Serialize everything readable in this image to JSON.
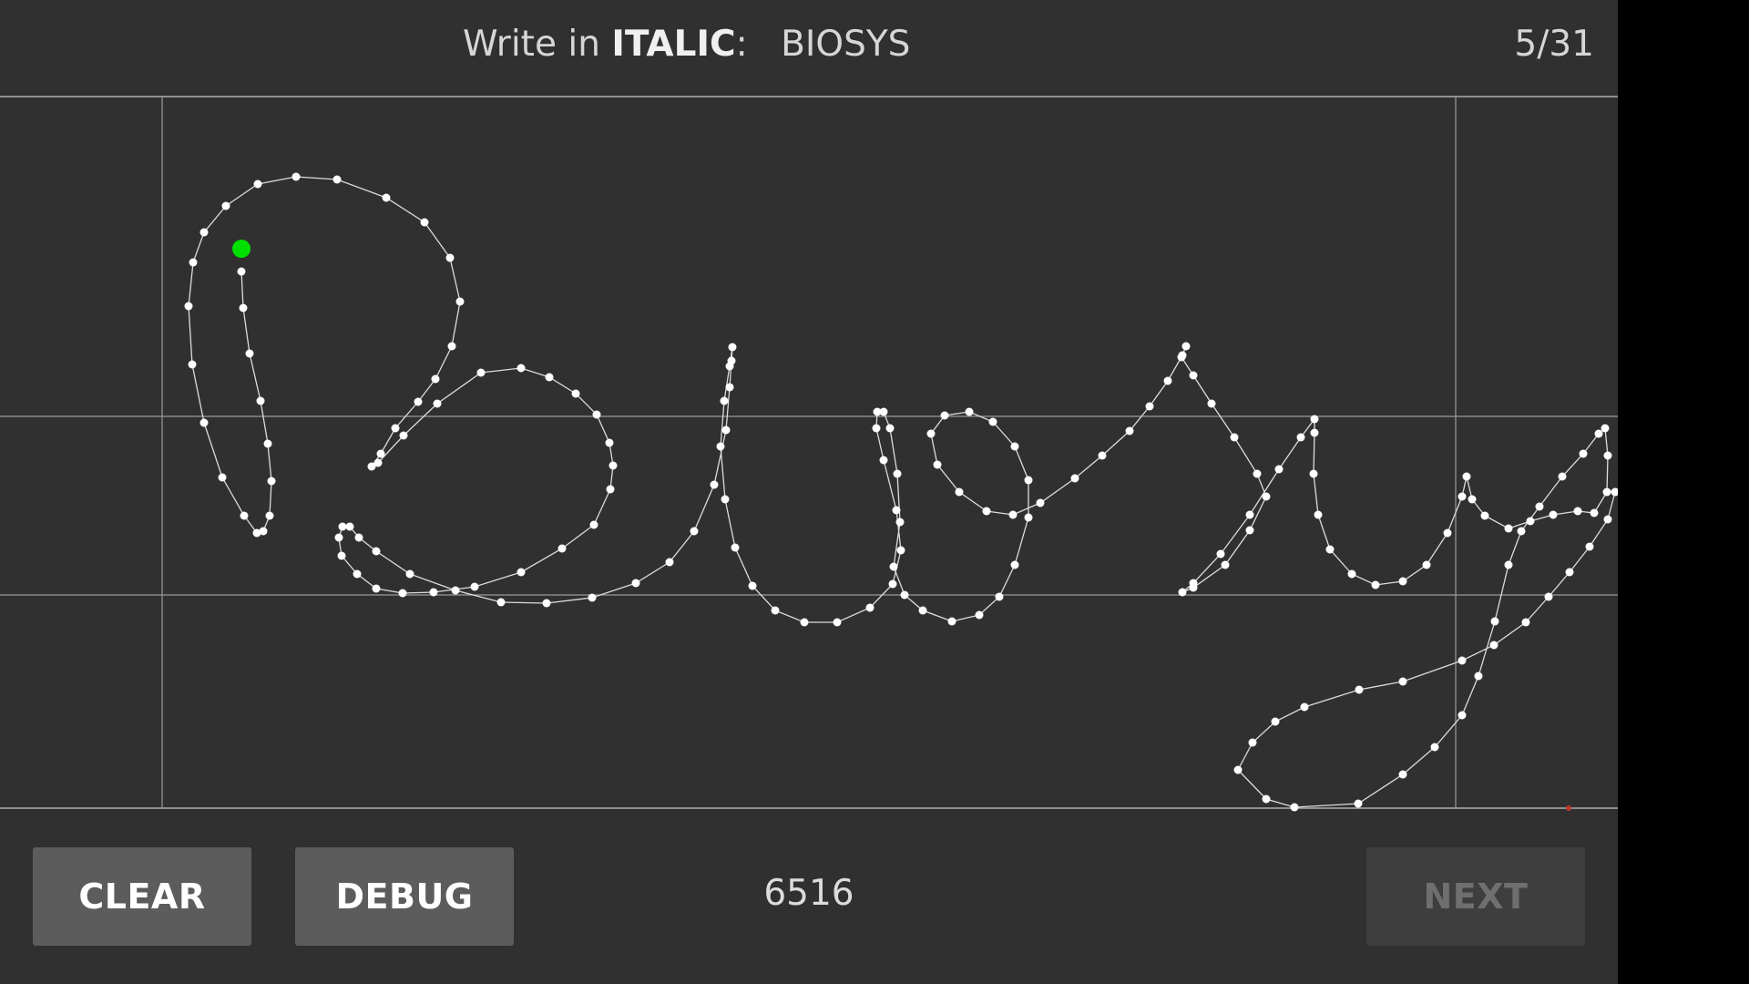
{
  "header": {
    "instruction_prefix": "Write in",
    "instruction_style": "ITALIC",
    "instruction_suffix": ":",
    "target_word": "BIOSYS",
    "progress": "5/31"
  },
  "drawing": {
    "handwritten_text": "Biosys",
    "stroke_color": "#ffffff",
    "start_point_color": "#00e000",
    "guide_line_color": "#9a9a9a"
  },
  "footer": {
    "clear_label": "CLEAR",
    "debug_label": "DEBUG",
    "point_count": "6516",
    "next_label": "NEXT"
  },
  "colors": {
    "background": "#303030",
    "button": "#5c5c5d",
    "button_disabled": "#3e3e3e"
  }
}
